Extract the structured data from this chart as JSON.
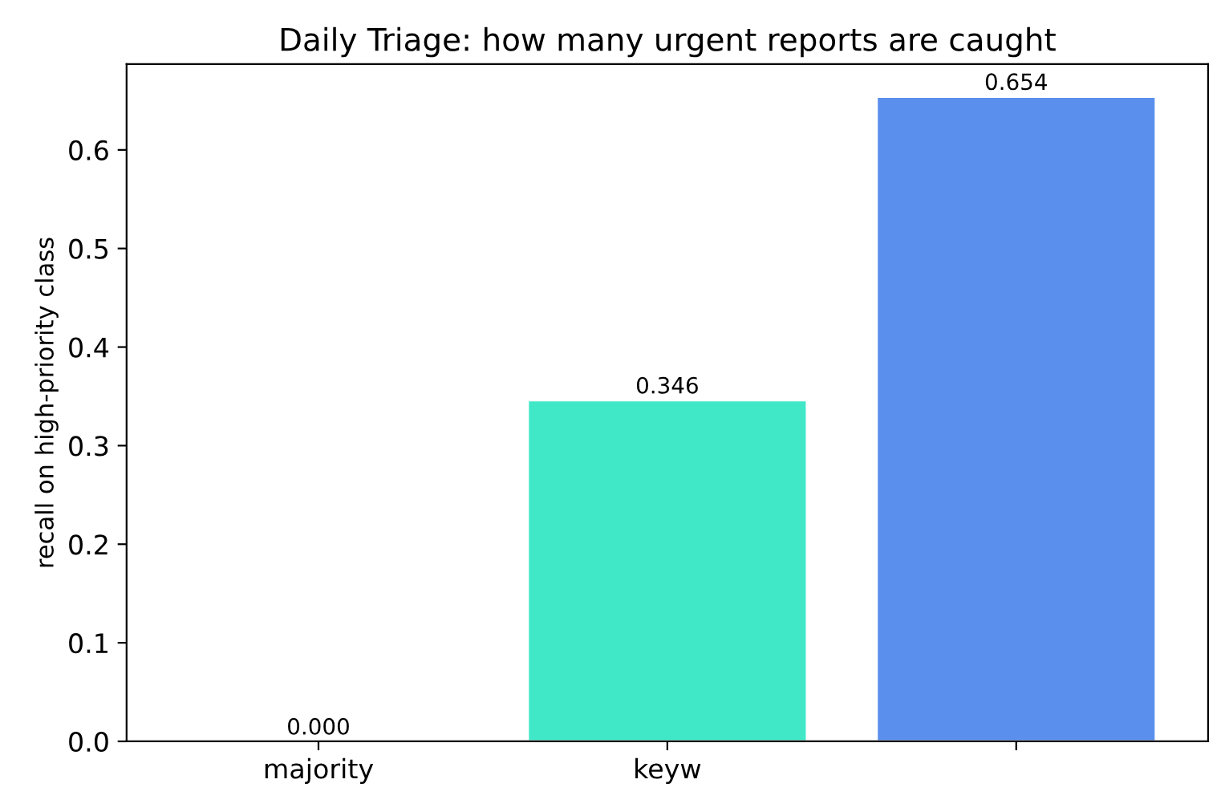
{
  "chart_data": {
    "type": "bar",
    "title": "Daily Triage: how many urgent reports are caught",
    "ylabel": "recall on high-priority class",
    "categories": [
      "majority",
      "keyw",
      null
    ],
    "values": [
      0.0,
      0.346,
      0.654
    ],
    "colors": [
      null,
      "#40e8c8",
      "#5b8fee"
    ],
    "value_labels": [
      "0.000",
      "0.346",
      "0.654"
    ],
    "ylim": [
      0,
      0.687
    ],
    "yticks": [
      {
        "value": 0,
        "label": "0.0"
      },
      {
        "value": 0.1,
        "label": "0.1"
      },
      0.2,
      0.3,
      0.4,
      0.5,
      0.6
    ],
    "grid": false,
    "legend": false
  }
}
